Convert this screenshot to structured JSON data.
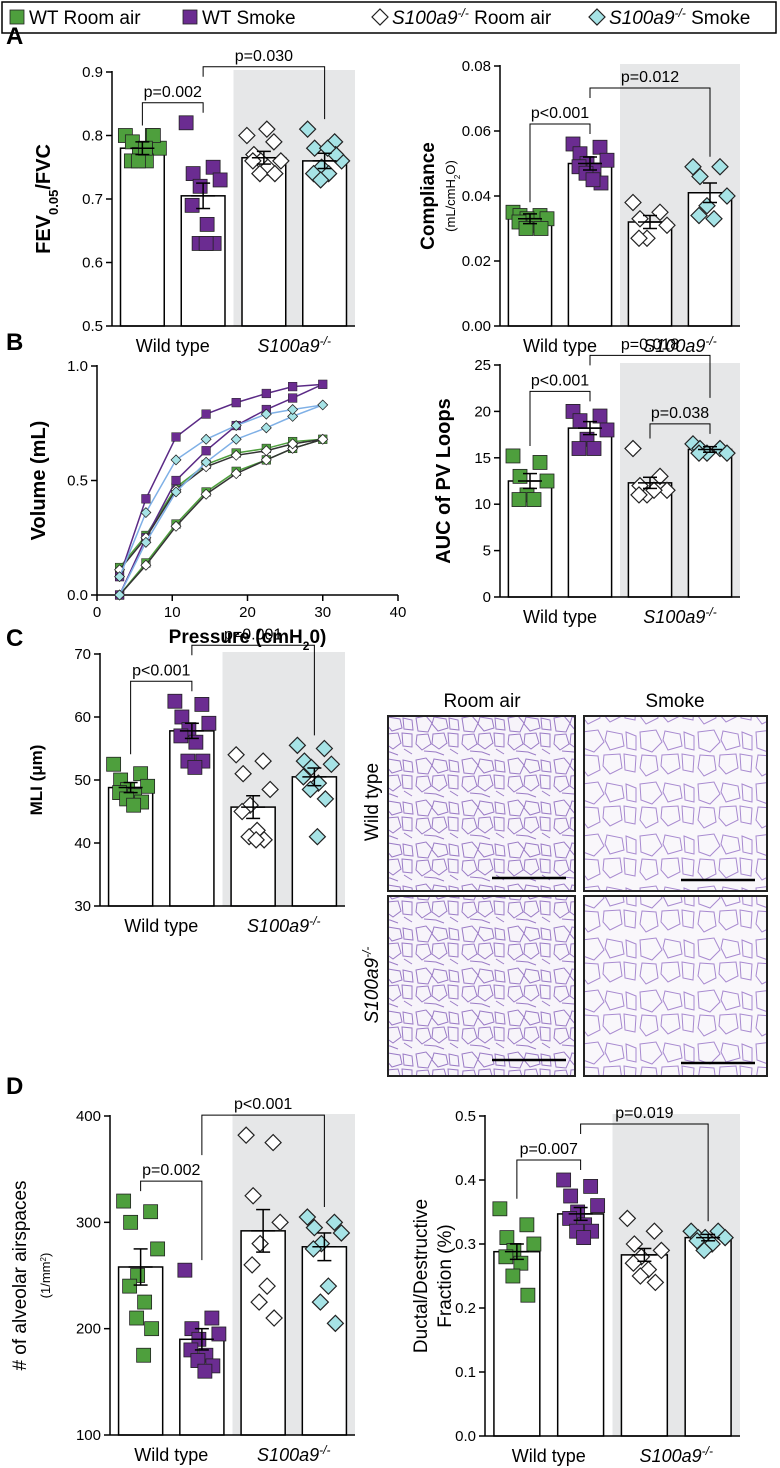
{
  "legend": [
    {
      "name": [
        {
          "t": "WT Room air"
        }
      ],
      "color": "#4e9f3d",
      "marker": "square"
    },
    {
      "name": [
        {
          "t": "WT Smoke"
        }
      ],
      "color": "#6b2c91",
      "marker": "square"
    },
    {
      "name": [
        {
          "t": "S100a9",
          "i": true
        },
        {
          "t": "-/-",
          "s": "sup",
          "i": true
        },
        {
          "t": " Room air"
        }
      ],
      "color": "#ffffff",
      "marker": "diamond"
    },
    {
      "name": [
        {
          "t": "S100a9",
          "i": true
        },
        {
          "t": "-/-",
          "s": "sup",
          "i": true
        },
        {
          "t": " Smoke"
        }
      ],
      "color": "#a6e3e6",
      "marker": "diamond"
    }
  ],
  "panel_labels": [
    "A",
    "B",
    "C",
    "D"
  ],
  "chart_data": [
    {
      "type": "bar",
      "ylabel": [
        [
          {
            "t": "FEV"
          },
          {
            "t": "0.05",
            "s": "sub"
          },
          {
            "t": "/FVC"
          }
        ]
      ],
      "categories": [
        [
          {
            "t": "Wild type"
          }
        ],
        [
          {
            "t": "S100a9",
            "i": true
          },
          {
            "t": "-/-",
            "s": "sup",
            "i": true
          }
        ]
      ],
      "ylim": [
        0.5,
        0.9
      ],
      "yticks": [
        0.5,
        0.6,
        0.7,
        0.8,
        0.9
      ],
      "series": [
        {
          "value": 0.78,
          "error": 0.01,
          "points": [
            0.8,
            0.8,
            0.79,
            0.78,
            0.77,
            0.76,
            0.76,
            0.76,
            0.8,
            0.78
          ]
        },
        {
          "value": 0.705,
          "error": 0.02,
          "points": [
            0.82,
            0.75,
            0.74,
            0.73,
            0.72,
            0.69,
            0.66,
            0.63,
            0.63,
            0.63
          ]
        },
        {
          "value": 0.765,
          "error": 0.01,
          "points": [
            0.8,
            0.79,
            0.77,
            0.76,
            0.76,
            0.76,
            0.75,
            0.74,
            0.74,
            0.81
          ]
        },
        {
          "value": 0.76,
          "error": 0.012,
          "points": [
            0.81,
            0.79,
            0.78,
            0.76,
            0.75,
            0.74,
            0.74,
            0.73,
            0.77,
            0.78
          ]
        }
      ],
      "comparisons": [
        {
          "label": "p=0.002",
          "pair": [
            0,
            1
          ]
        },
        {
          "label": "p=0.030",
          "pair": [
            1,
            3
          ]
        }
      ]
    },
    {
      "type": "bar",
      "ylabel": [
        [
          {
            "t": "Compliance"
          }
        ],
        [
          {
            "t": "(mL/cmH"
          },
          {
            "t": "2",
            "s": "sub"
          },
          {
            "t": "O)"
          }
        ]
      ],
      "categories": [
        [
          {
            "t": "Wild type"
          }
        ],
        [
          {
            "t": "S100a9",
            "i": true
          },
          {
            "t": "-/-",
            "s": "sup",
            "i": true
          }
        ]
      ],
      "ylim": [
        0,
        0.08
      ],
      "yticks": [
        {
          "value": 0,
          "label": "0.00"
        },
        0.02,
        0.04,
        0.06,
        0.08
      ],
      "series": [
        {
          "value": 0.033,
          "error": 0.0015,
          "points": [
            0.035,
            0.034,
            0.034,
            0.033,
            0.033,
            0.032,
            0.031,
            0.03,
            0.03
          ]
        },
        {
          "value": 0.05,
          "error": 0.002,
          "points": [
            0.056,
            0.055,
            0.053,
            0.051,
            0.05,
            0.049,
            0.048,
            0.047,
            0.044,
            0.045
          ]
        },
        {
          "value": 0.032,
          "error": 0.002,
          "points": [
            0.038,
            0.035,
            0.033,
            0.031,
            0.027,
            0.027
          ]
        },
        {
          "value": 0.041,
          "error": 0.003,
          "points": [
            0.049,
            0.049,
            0.046,
            0.04,
            0.037,
            0.034,
            0.033
          ]
        }
      ],
      "comparisons": [
        {
          "label": "p<0.001",
          "pair": [
            0,
            1
          ]
        },
        {
          "label": "p=0.012",
          "pair": [
            1,
            3
          ]
        }
      ]
    },
    {
      "type": "line",
      "xlabel": [
        {
          "t": "Pressure (cmH"
        },
        {
          "t": "2",
          "s": "sub"
        },
        {
          "t": "0)"
        }
      ],
      "ylabel": [
        [
          {
            "t": "Volume (mL)"
          }
        ]
      ],
      "xlim": [
        0,
        40
      ],
      "xticks": [
        0,
        10,
        20,
        30,
        40
      ],
      "ylim": [
        0,
        1
      ],
      "yticks": [
        {
          "value": 0,
          "label": "0.0"
        },
        0.5,
        {
          "value": 1,
          "label": "1.0"
        }
      ],
      "series": [
        {
          "line_color": "#4e9f3d",
          "x": [
            3,
            6.5,
            10.5,
            14.5,
            18.5,
            22.5,
            26,
            30,
            26,
            22.5,
            18.5,
            14.5,
            10.5,
            6.5,
            3
          ],
          "values": [
            0,
            0.14,
            0.31,
            0.45,
            0.54,
            0.59,
            0.64,
            0.68,
            0.67,
            0.64,
            0.62,
            0.57,
            0.47,
            0.26,
            0.12
          ]
        },
        {
          "line_color": "#5b2a86",
          "x": [
            3,
            6.5,
            10.5,
            14.5,
            18.5,
            22.5,
            26,
            30,
            26,
            22.5,
            18.5,
            14.5,
            10.5,
            6.5,
            3
          ],
          "values": [
            0,
            0.25,
            0.5,
            0.63,
            0.74,
            0.81,
            0.86,
            0.92,
            0.91,
            0.88,
            0.84,
            0.79,
            0.69,
            0.42,
            0.08
          ]
        },
        {
          "line_color": "#333333",
          "x": [
            3,
            6.5,
            10.5,
            14.5,
            18.5,
            22.5,
            26,
            30,
            26,
            22.5,
            18.5,
            14.5,
            10.5,
            6.5,
            3
          ],
          "values": [
            0,
            0.13,
            0.3,
            0.44,
            0.53,
            0.59,
            0.64,
            0.68,
            0.66,
            0.63,
            0.61,
            0.56,
            0.46,
            0.25,
            0.11
          ]
        },
        {
          "line_color": "#7fb0e6",
          "x": [
            3,
            6.5,
            10.5,
            14.5,
            18.5,
            22.5,
            26,
            30,
            26,
            22.5,
            18.5,
            14.5,
            10.5,
            6.5,
            3
          ],
          "values": [
            0,
            0.23,
            0.45,
            0.58,
            0.68,
            0.73,
            0.78,
            0.83,
            0.81,
            0.79,
            0.74,
            0.68,
            0.59,
            0.36,
            0.08
          ]
        }
      ]
    },
    {
      "type": "bar",
      "ylabel": [
        [
          {
            "t": "AUC of PV Loops"
          }
        ]
      ],
      "categories": [
        [
          {
            "t": "Wild type"
          }
        ],
        [
          {
            "t": "S100a9",
            "i": true
          },
          {
            "t": "-/-",
            "s": "sup",
            "i": true
          }
        ]
      ],
      "ylim": [
        0,
        25
      ],
      "yticks": [
        0,
        5,
        10,
        15,
        20,
        25
      ],
      "series": [
        {
          "value": 12.5,
          "error": 0.8,
          "points": [
            15.2,
            14.5,
            13,
            12.5,
            11,
            10.5,
            10.5
          ]
        },
        {
          "value": 18.2,
          "error": 0.7,
          "points": [
            20,
            19.5,
            19,
            18,
            17,
            16,
            16
          ]
        },
        {
          "value": 12.3,
          "error": 0.6,
          "points": [
            16,
            13,
            12,
            11.5,
            11,
            11,
            11.5
          ]
        },
        {
          "value": 15.9,
          "error": 0.3,
          "points": [
            16.5,
            16,
            16,
            15.5,
            15.5,
            15.5
          ]
        }
      ],
      "comparisons": [
        {
          "label": "p<0.001",
          "pair": [
            0,
            1
          ]
        },
        {
          "label": "p=0.038",
          "pair": [
            2,
            3
          ]
        },
        {
          "label": "p=0.018",
          "pair": [
            1,
            3
          ]
        }
      ]
    },
    {
      "type": "bar",
      "ylabel": [
        [
          {
            "t": "MLI (μm)"
          }
        ]
      ],
      "categories": [
        [
          {
            "t": "Wild type"
          }
        ],
        [
          {
            "t": "S100a9",
            "i": true
          },
          {
            "t": "-/-",
            "s": "sup",
            "i": true
          }
        ]
      ],
      "ylim": [
        30,
        70
      ],
      "yticks": [
        30,
        40,
        50,
        60,
        70
      ],
      "series": [
        {
          "value": 48.8,
          "error": 0.8,
          "points": [
            52.5,
            51,
            50,
            49,
            48.5,
            48,
            47.5,
            47,
            46.5,
            46
          ]
        },
        {
          "value": 57.8,
          "error": 1.2,
          "points": [
            62.5,
            62,
            60,
            59,
            58,
            57,
            56,
            53,
            53,
            52
          ]
        },
        {
          "value": 45.7,
          "error": 1.8,
          "points": [
            54,
            53,
            51,
            48.5,
            46,
            45,
            42,
            41,
            40.5,
            40.5
          ]
        },
        {
          "value": 50.5,
          "error": 1.4,
          "points": [
            55.5,
            55,
            53,
            52.5,
            52,
            50.5,
            49.5,
            48.5,
            47,
            41
          ]
        }
      ],
      "comparisons": [
        {
          "label": "p<0.001",
          "pair": [
            0,
            1
          ]
        },
        {
          "label": "p=0.001",
          "pair": [
            1,
            3
          ]
        }
      ]
    },
    {
      "type": "bar",
      "ylabel": [
        [
          {
            "t": "# of alveolar airspaces"
          }
        ],
        [
          {
            "t": "(1/mm"
          },
          {
            "t": "2",
            "s": "sup"
          },
          {
            "t": ")"
          }
        ]
      ],
      "categories": [
        [
          {
            "t": "Wild type"
          }
        ],
        [
          {
            "t": "S100a9",
            "i": true
          },
          {
            "t": "-/-",
            "s": "sup",
            "i": true
          }
        ]
      ],
      "ylim": [
        100,
        400
      ],
      "yticks": [
        100,
        200,
        300,
        400
      ],
      "series": [
        {
          "value": 258,
          "error": 17,
          "points": [
            320,
            310,
            300,
            275,
            250,
            240,
            225,
            210,
            200,
            175
          ]
        },
        {
          "value": 190,
          "error": 10,
          "points": [
            255,
            210,
            200,
            195,
            190,
            180,
            175,
            170,
            165,
            160
          ]
        },
        {
          "value": 292,
          "error": 20,
          "points": [
            382,
            375,
            325,
            300,
            280,
            260,
            240,
            225,
            210
          ]
        },
        {
          "value": 277,
          "error": 13,
          "points": [
            305,
            300,
            295,
            290,
            280,
            275,
            240,
            225,
            205
          ]
        }
      ],
      "comparisons": [
        {
          "label": "p=0.002",
          "pair": [
            0,
            1
          ]
        },
        {
          "label": "p<0.001",
          "pair": [
            1,
            3
          ]
        }
      ]
    },
    {
      "type": "bar",
      "ylabel": [
        [
          {
            "t": "Ductal/Destructive"
          }
        ],
        [
          {
            "t": "Fraction (%)"
          }
        ]
      ],
      "categories": [
        [
          {
            "t": "Wild type"
          }
        ],
        [
          {
            "t": "S100a9",
            "i": true
          },
          {
            "t": "-/-",
            "s": "sup",
            "i": true
          }
        ]
      ],
      "ylim": [
        0,
        0.5
      ],
      "yticks": [
        {
          "value": 0,
          "label": "0.0"
        },
        0.1,
        0.2,
        0.3,
        0.4,
        0.5
      ],
      "series": [
        {
          "value": 0.288,
          "error": 0.012,
          "points": [
            0.355,
            0.33,
            0.31,
            0.3,
            0.29,
            0.28,
            0.27,
            0.25,
            0.22
          ]
        },
        {
          "value": 0.347,
          "error": 0.01,
          "points": [
            0.4,
            0.39,
            0.375,
            0.36,
            0.35,
            0.34,
            0.33,
            0.32,
            0.32,
            0.31
          ]
        },
        {
          "value": 0.283,
          "error": 0.01,
          "points": [
            0.34,
            0.32,
            0.3,
            0.29,
            0.28,
            0.27,
            0.26,
            0.25,
            0.24
          ]
        },
        {
          "value": 0.31,
          "error": 0.005,
          "points": [
            0.32,
            0.32,
            0.31,
            0.31,
            0.31,
            0.305,
            0.3,
            0.29
          ]
        }
      ],
      "comparisons": [
        {
          "label": "p=0.007",
          "pair": [
            0,
            1
          ]
        },
        {
          "label": "p=0.019",
          "pair": [
            1,
            3
          ]
        }
      ]
    }
  ],
  "histology": {
    "columns": [
      "Room air",
      "Smoke"
    ],
    "rows": [
      [
        {
          "t": "Wild type"
        }
      ],
      [
        {
          "t": "S100a9",
          "i": true
        },
        {
          "t": "-/-",
          "s": "sup",
          "i": true
        }
      ]
    ]
  }
}
